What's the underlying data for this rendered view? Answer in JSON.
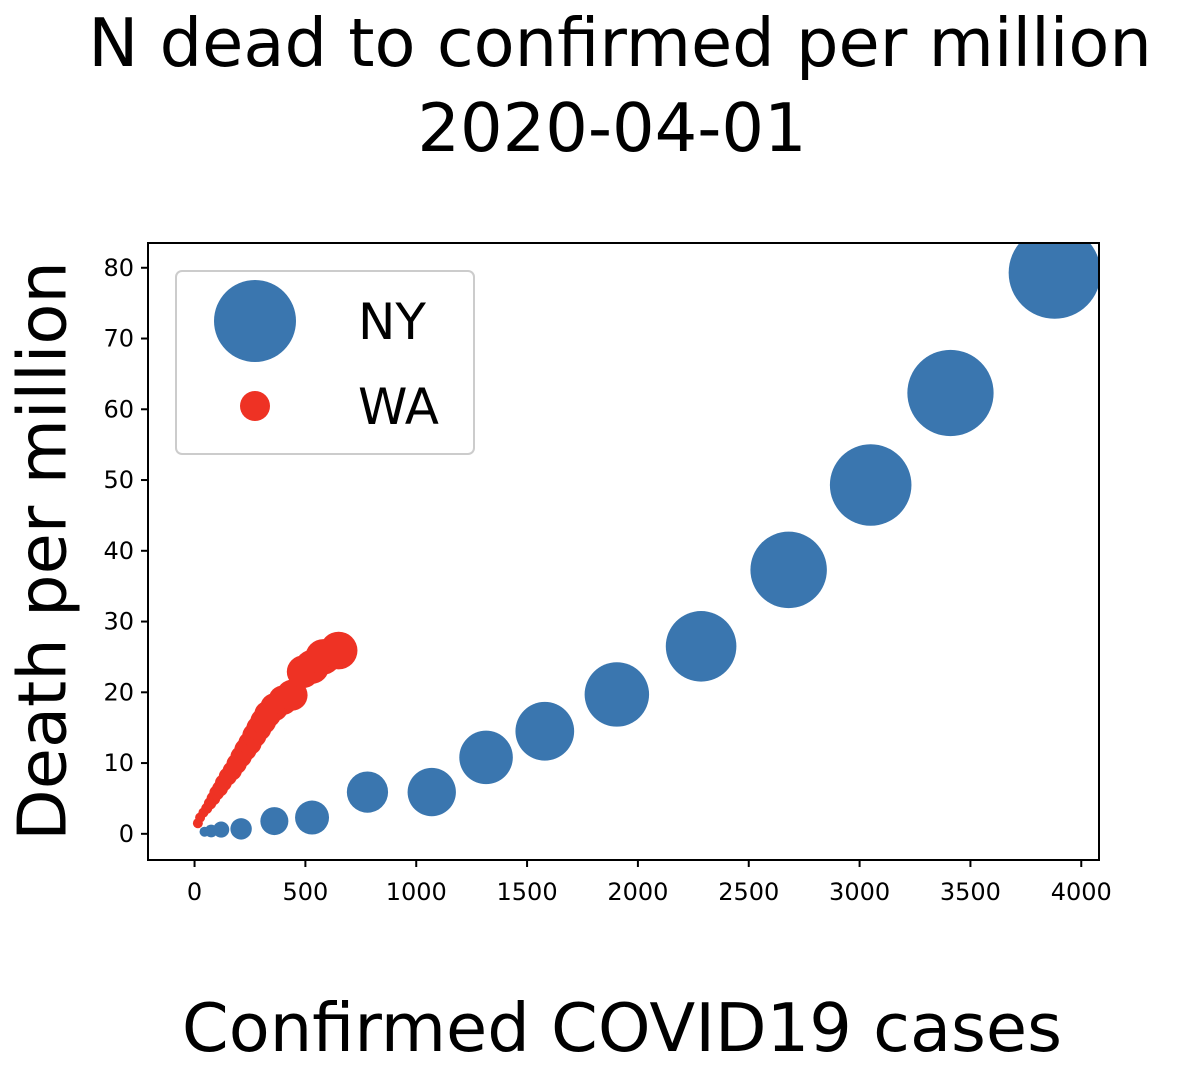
{
  "chart_data": {
    "type": "scatter",
    "title": [
      "N dead to confirmed per million",
      "2020-04-01"
    ],
    "xlabel": "Confirmed COVID19 cases",
    "ylabel": "Death per million",
    "xlim": [
      -210,
      4080
    ],
    "ylim": [
      -3.7,
      83.5
    ],
    "xticks": [
      0,
      500,
      1000,
      1500,
      2000,
      2500,
      3000,
      3500,
      4000
    ],
    "yticks": [
      0,
      10,
      20,
      30,
      40,
      50,
      60,
      70,
      80
    ],
    "grid": false,
    "legend_placement": "upper-left",
    "marker_size_encodes": "confirmed cases per million",
    "series": [
      {
        "name": "NY",
        "color": "#3a76af",
        "x": [
          45,
          75,
          120,
          210,
          360,
          530,
          780,
          1070,
          1315,
          1580,
          1905,
          2285,
          2680,
          3050,
          3410,
          3880
        ],
        "y": [
          0.3,
          0.4,
          0.6,
          0.7,
          1.8,
          2.3,
          5.9,
          5.9,
          10.8,
          14.5,
          19.7,
          26.5,
          37.3,
          49.3,
          62.3,
          79.3
        ]
      },
      {
        "name": "WA",
        "color": "#ee3224",
        "x": [
          15,
          25,
          40,
          55,
          70,
          85,
          100,
          115,
          130,
          150,
          170,
          190,
          210,
          230,
          250,
          270,
          290,
          310,
          330,
          360,
          400,
          440,
          490,
          530,
          580,
          650
        ],
        "y": [
          1.5,
          2.3,
          3.0,
          3.6,
          4.3,
          5.0,
          5.8,
          6.4,
          7.2,
          8.1,
          8.9,
          9.9,
          10.9,
          11.9,
          12.8,
          13.9,
          14.9,
          15.9,
          16.9,
          17.9,
          18.9,
          19.6,
          22.9,
          23.6,
          25.0,
          25.9
        ]
      }
    ]
  }
}
